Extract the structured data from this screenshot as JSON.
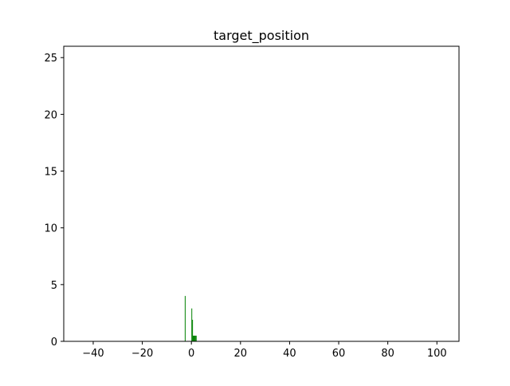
{
  "chart_data": {
    "type": "bar",
    "title": "target_position",
    "xlabel": "",
    "ylabel": "",
    "xlim": [
      -52,
      109
    ],
    "ylim": [
      0,
      26
    ],
    "x_ticks": [
      -40,
      -20,
      0,
      20,
      40,
      60,
      80,
      100
    ],
    "x_tick_labels": [
      "−40",
      "−20",
      "0",
      "20",
      "40",
      "60",
      "80",
      "100"
    ],
    "y_ticks": [
      0,
      5,
      10,
      15,
      20,
      25
    ],
    "y_tick_labels": [
      "0",
      "5",
      "10",
      "15",
      "20",
      "25"
    ],
    "grid": false,
    "bar_color": "#008000",
    "bars": [
      {
        "x": -2.7,
        "width": 0.3,
        "height": 4.0
      },
      {
        "x": 0.0,
        "width": 0.3,
        "height": 2.9
      },
      {
        "x": 0.3,
        "width": 0.3,
        "height": 1.9
      },
      {
        "x": 0.6,
        "width": 0.3,
        "height": 0.5
      },
      {
        "x": 0.9,
        "width": 0.3,
        "height": 0.5
      },
      {
        "x": 1.2,
        "width": 0.3,
        "height": 0.5
      },
      {
        "x": 1.5,
        "width": 0.3,
        "height": 0.5
      },
      {
        "x": 1.8,
        "width": 0.3,
        "height": 0.5
      }
    ]
  }
}
